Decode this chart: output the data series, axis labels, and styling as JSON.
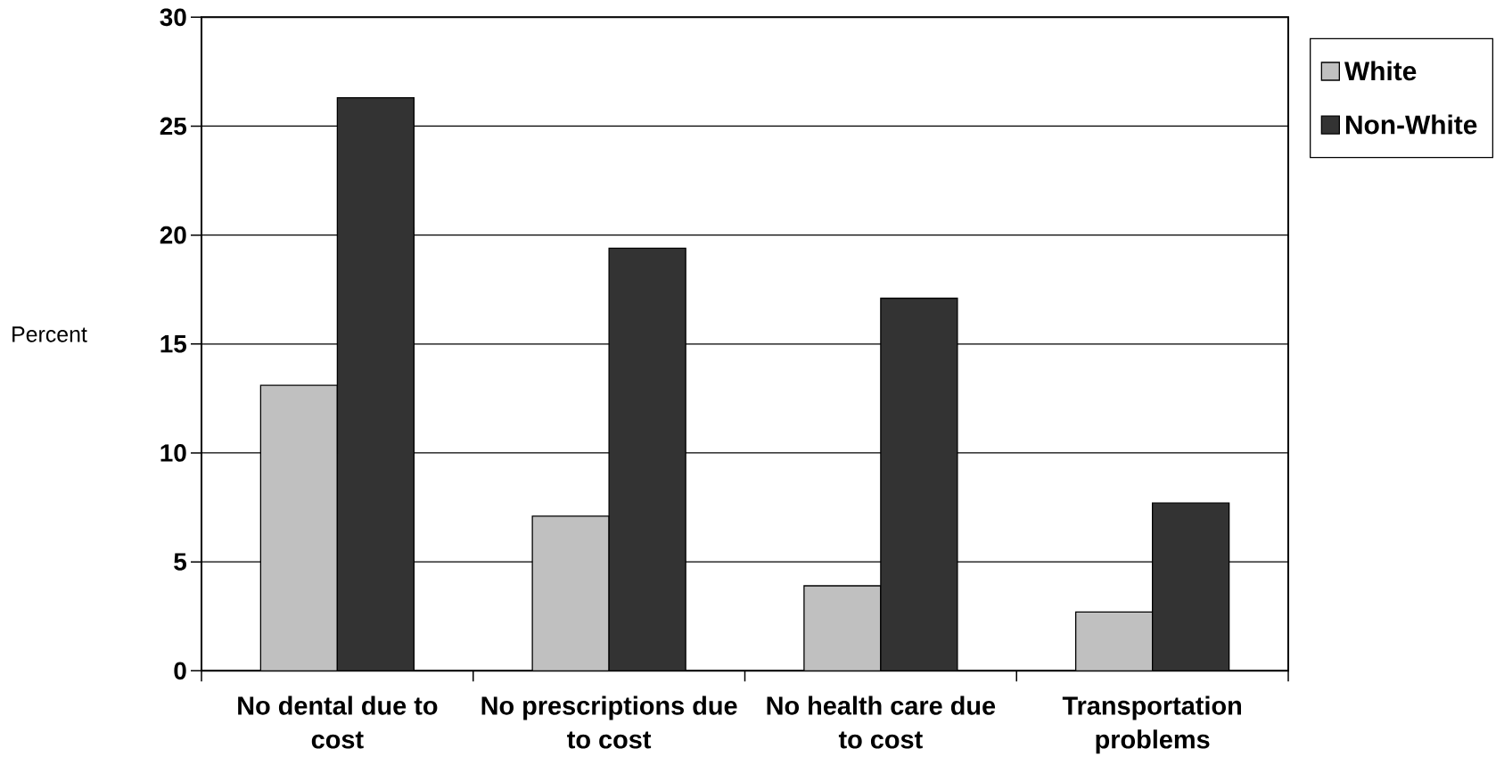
{
  "chart_data": {
    "type": "bar",
    "ylabel": "Percent",
    "categories": [
      "No dental due to cost",
      "No prescriptions due to cost",
      "No health care due to cost",
      "Transportation problems"
    ],
    "series": [
      {
        "name": "White",
        "color": "#c0c0c0",
        "values": [
          13.1,
          7.1,
          3.9,
          2.7
        ]
      },
      {
        "name": "Non-White",
        "color": "#333333",
        "values": [
          26.3,
          19.4,
          17.1,
          7.7
        ]
      }
    ],
    "ylim": [
      0,
      30
    ],
    "yticks": [
      0,
      5,
      10,
      15,
      20,
      25,
      30
    ],
    "grid": "y",
    "legend": "top right"
  }
}
